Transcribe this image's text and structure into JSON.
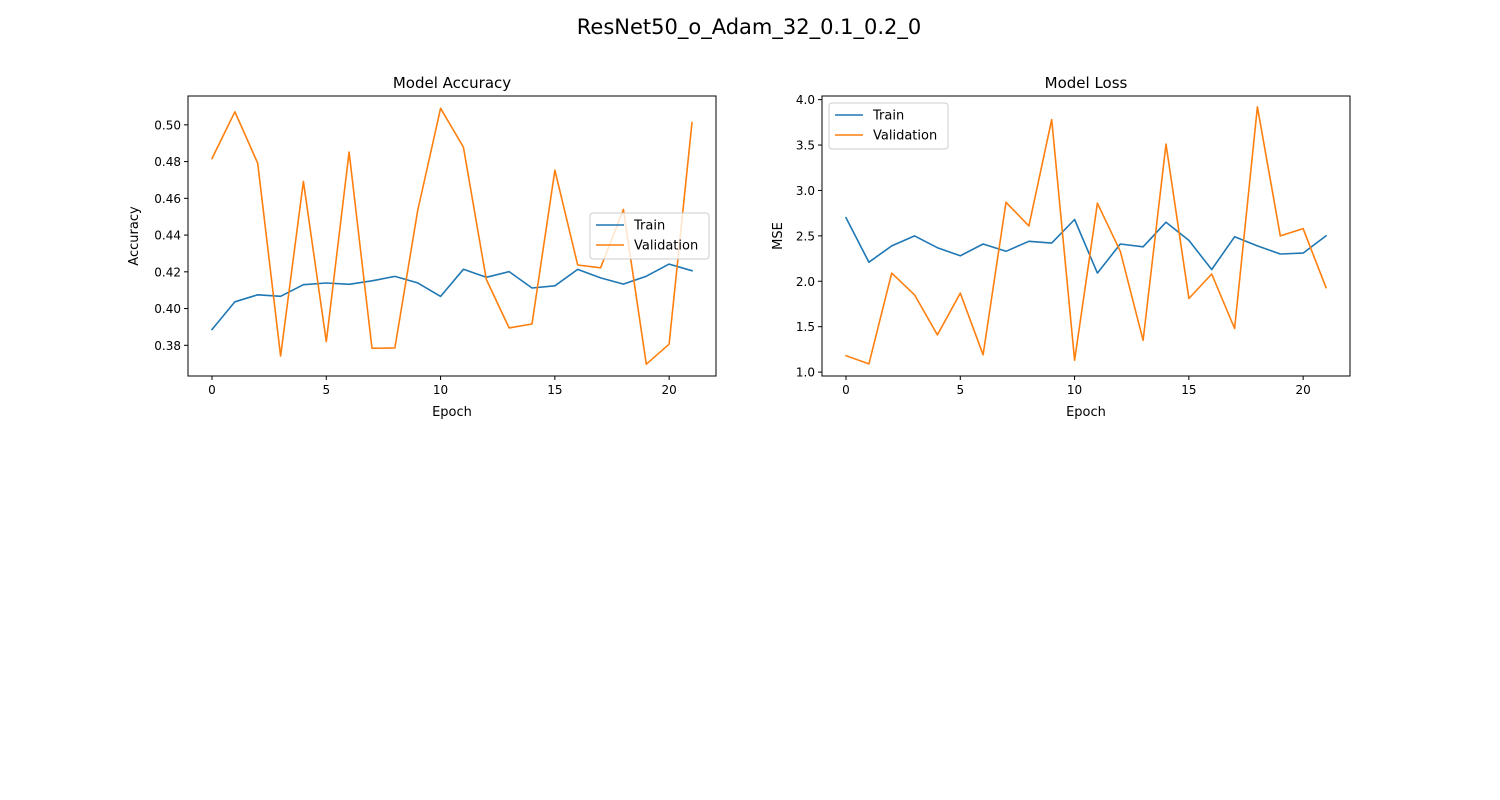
{
  "figure": {
    "suptitle": "ResNet50_o_Adam_32_0.1_0.2_0"
  },
  "colors": {
    "train": "#1f77b4",
    "validation": "#ff7f0e"
  },
  "chart_data": [
    {
      "type": "line",
      "title": "Model Accuracy",
      "xlabel": "Epoch",
      "ylabel": "Accuracy",
      "xlim": [
        -1.05,
        22.05
      ],
      "ylim": [
        0.3633,
        0.5157
      ],
      "xticks": [
        0,
        5,
        10,
        15,
        20
      ],
      "xtick_labels": [
        "0",
        "5",
        "10",
        "15",
        "20"
      ],
      "yticks": [
        0.38,
        0.4,
        0.42,
        0.44,
        0.46,
        0.48,
        0.5
      ],
      "ytick_labels": [
        "0.38",
        "0.40",
        "0.42",
        "0.44",
        "0.46",
        "0.48",
        "0.50"
      ],
      "grid": false,
      "legend_position": "center-right",
      "x": [
        0,
        1,
        2,
        3,
        4,
        5,
        6,
        7,
        8,
        9,
        10,
        11,
        12,
        13,
        14,
        15,
        16,
        17,
        18,
        19,
        20,
        21
      ],
      "series": [
        {
          "name": "Train",
          "color": "#1f77b4",
          "values": [
            0.3886,
            0.4037,
            0.4075,
            0.4067,
            0.413,
            0.4139,
            0.4132,
            0.4151,
            0.4175,
            0.414,
            0.4066,
            0.4214,
            0.417,
            0.4201,
            0.4112,
            0.4124,
            0.4213,
            0.4167,
            0.4133,
            0.4176,
            0.4242,
            0.4206
          ]
        },
        {
          "name": "Validation",
          "color": "#ff7f0e",
          "values": [
            0.4817,
            0.5071,
            0.4791,
            0.3742,
            0.4692,
            0.382,
            0.4852,
            0.3784,
            0.3786,
            0.4534,
            0.509,
            0.4879,
            0.4159,
            0.3895,
            0.3916,
            0.4753,
            0.4237,
            0.4222,
            0.4539,
            0.3697,
            0.3806,
            0.5012
          ]
        }
      ]
    },
    {
      "type": "line",
      "title": "Model Loss",
      "xlabel": "Epoch",
      "ylabel": "MSE",
      "xlim": [
        -1.05,
        22.05
      ],
      "ylim": [
        0.957,
        4.04
      ],
      "xticks": [
        0,
        5,
        10,
        15,
        20
      ],
      "xtick_labels": [
        "0",
        "5",
        "10",
        "15",
        "20"
      ],
      "yticks": [
        1.0,
        1.5,
        2.0,
        2.5,
        3.0,
        3.5,
        4.0
      ],
      "ytick_labels": [
        "1.0",
        "1.5",
        "2.0",
        "2.5",
        "3.0",
        "3.5",
        "4.0"
      ],
      "grid": false,
      "legend_position": "upper-left",
      "x": [
        0,
        1,
        2,
        3,
        4,
        5,
        6,
        7,
        8,
        9,
        10,
        11,
        12,
        13,
        14,
        15,
        16,
        17,
        18,
        19,
        20,
        21
      ],
      "series": [
        {
          "name": "Train",
          "color": "#1f77b4",
          "values": [
            2.7,
            2.21,
            2.39,
            2.5,
            2.37,
            2.28,
            2.41,
            2.33,
            2.44,
            2.42,
            2.68,
            2.09,
            2.41,
            2.38,
            2.65,
            2.45,
            2.13,
            2.49,
            2.39,
            2.3,
            2.31,
            2.5
          ]
        },
        {
          "name": "Validation",
          "color": "#ff7f0e",
          "values": [
            1.18,
            1.09,
            2.09,
            1.85,
            1.41,
            1.87,
            1.19,
            2.87,
            2.61,
            3.78,
            1.13,
            2.86,
            2.33,
            1.35,
            3.51,
            1.81,
            2.08,
            1.48,
            3.92,
            2.5,
            2.58,
            1.93
          ]
        }
      ]
    }
  ]
}
